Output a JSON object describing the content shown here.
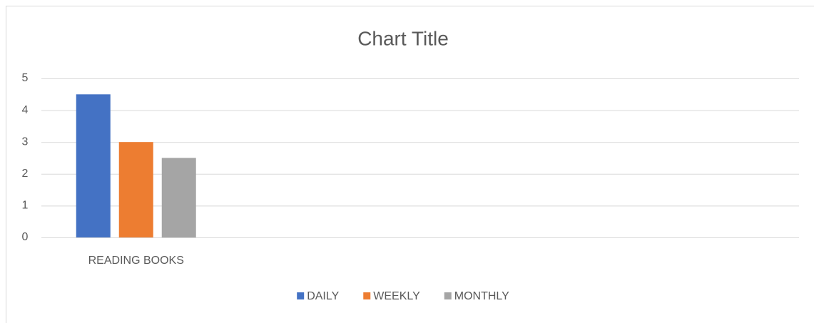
{
  "chart_data": {
    "type": "bar",
    "title": "Chart Title",
    "categories": [
      "READING BOOKS",
      null,
      null,
      null
    ],
    "series": [
      {
        "name": "DAILY",
        "color": "#4472c4",
        "values": [
          4.5,
          null,
          null,
          null
        ]
      },
      {
        "name": "WEEKLY",
        "color": "#ed7d31",
        "values": [
          3,
          null,
          null,
          null
        ]
      },
      {
        "name": "MONTHLY",
        "color": "#a5a5a5",
        "values": [
          2.5,
          null,
          null,
          null
        ]
      }
    ],
    "ylim": [
      0,
      5
    ],
    "yticks": [
      0,
      1,
      2,
      3,
      4,
      5
    ],
    "grid": true,
    "legend": "bottom"
  }
}
